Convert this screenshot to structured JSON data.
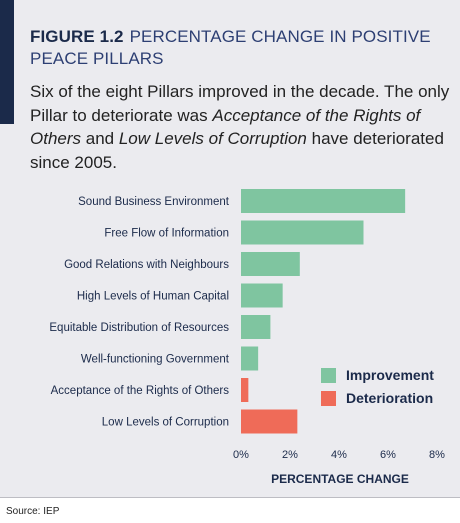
{
  "figure": {
    "label": "FIGURE 1.2",
    "title": "PERCENTAGE CHANGE IN POSITIVE PEACE PILLARS"
  },
  "description": {
    "part1": "Six of the eight Pillars improved in the decade. The only Pillar to deteriorate was ",
    "em1": "Acceptance of the Rights of Others",
    "part2": " and ",
    "em2": "Low Levels of Corruption",
    "part3": " have deteriorated since 2005."
  },
  "source": "Source: IEP",
  "colors": {
    "improvement": "#7fc5a0",
    "deterioration": "#ef6b58",
    "navy": "#1b2a4a"
  },
  "chart_data": {
    "type": "bar",
    "orientation": "horizontal",
    "categories": [
      "Sound Business Environment",
      "Free Flow of Information",
      "Good Relations with Neighbours",
      "High Levels of Human Capital",
      "Equitable Distribution of Resources",
      "Well-functioning Government",
      "Acceptance of the Rights of Others",
      "Low Levels of Corruption"
    ],
    "values": [
      6.7,
      5.0,
      2.4,
      1.7,
      1.2,
      0.7,
      0.3,
      2.3
    ],
    "status": [
      "Improvement",
      "Improvement",
      "Improvement",
      "Improvement",
      "Improvement",
      "Improvement",
      "Deterioration",
      "Deterioration"
    ],
    "xlabel": "PERCENTAGE CHANGE",
    "xlim": [
      0,
      8
    ],
    "xticks": [
      "0%",
      "2%",
      "4%",
      "6%",
      "8%"
    ],
    "legend": [
      "Improvement",
      "Deterioration"
    ],
    "legend_position": "bottom-right",
    "grid": false
  }
}
